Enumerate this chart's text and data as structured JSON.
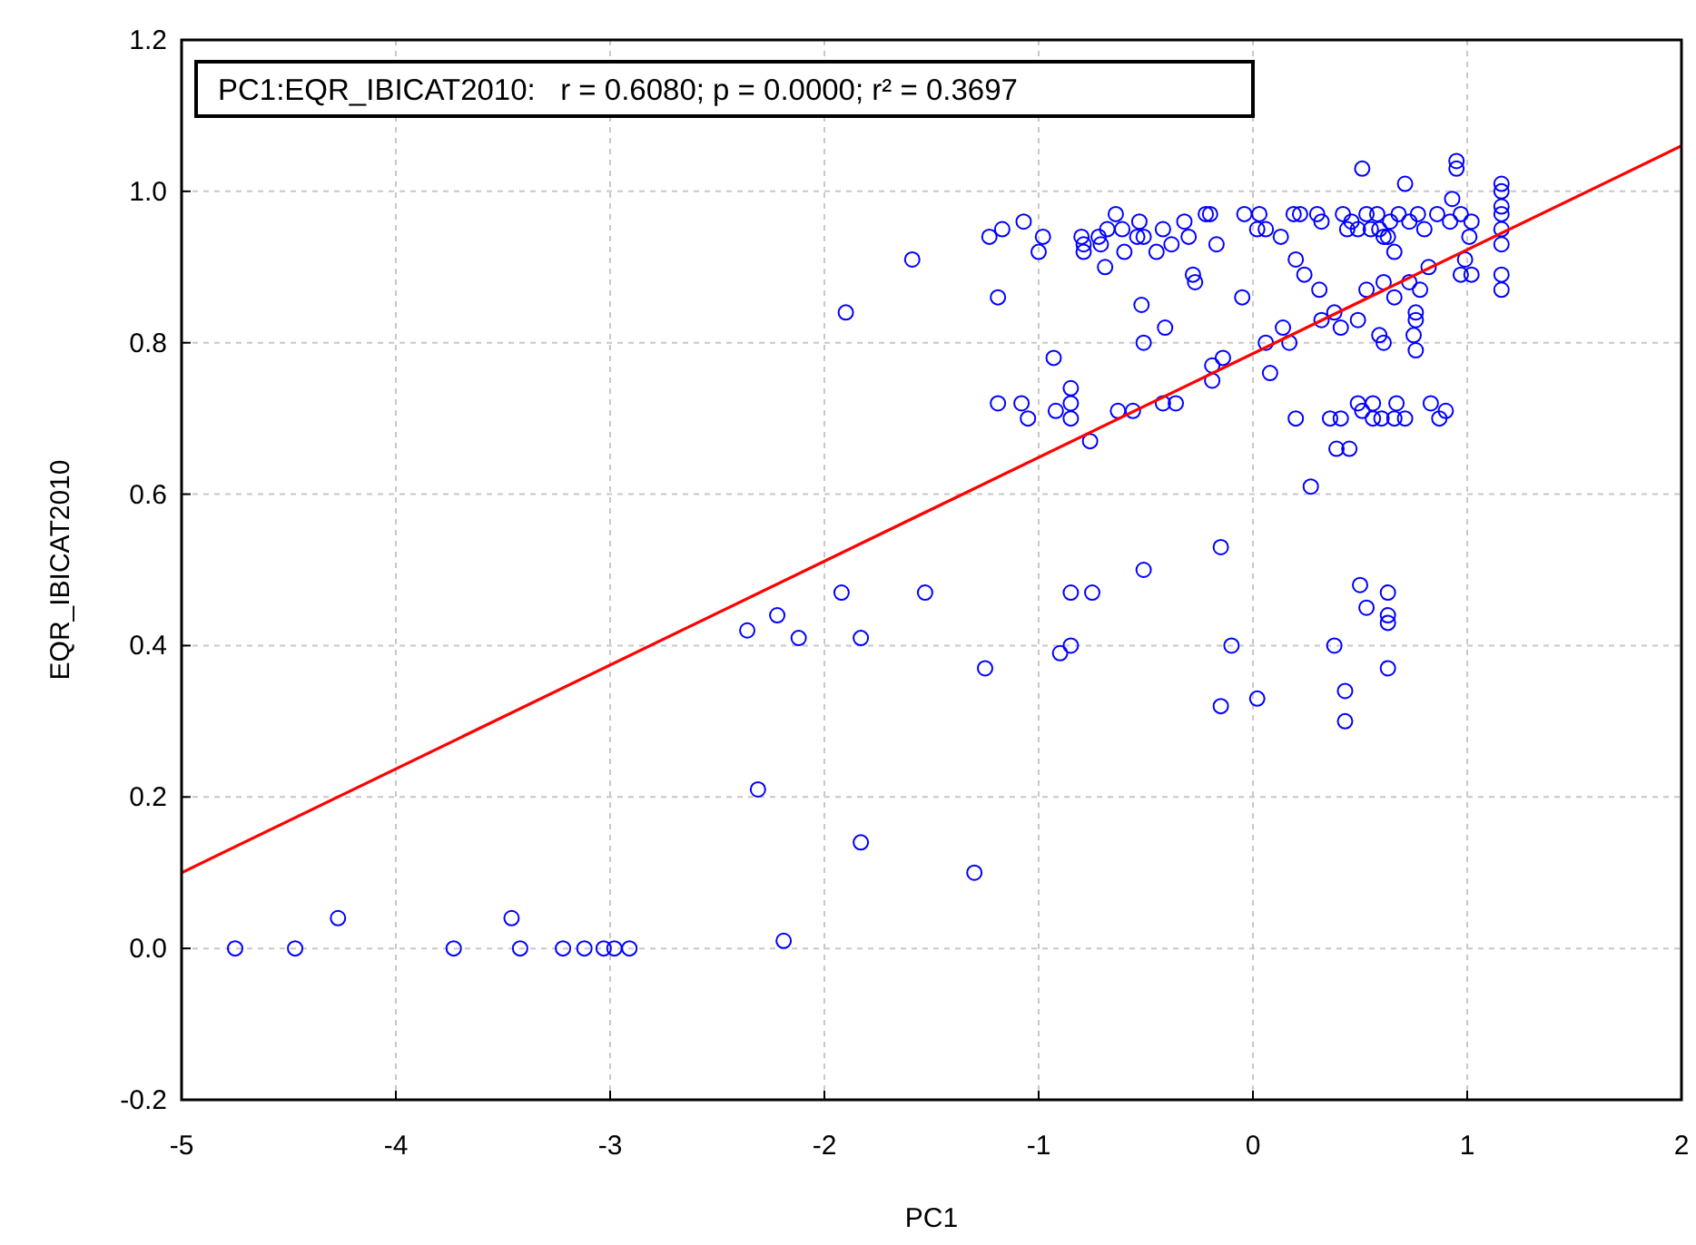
{
  "chart_data": {
    "type": "scatter",
    "xlabel": "PC1",
    "ylabel": "EQR_IBICAT2010",
    "annotations": [
      "PC1:EQR_IBICAT2010:   r = 0.6080; p = 0.0000; r² = 0.3697"
    ],
    "xlim": [
      -5,
      2
    ],
    "xticks": [
      -5,
      -4,
      -3,
      -2,
      -1,
      0,
      1,
      2
    ],
    "ylim": [
      -0.2,
      1.2
    ],
    "yticks": [
      -0.2,
      {
        "value": 0,
        "label": "0.0"
      },
      0.2,
      0.4,
      0.6,
      0.8,
      {
        "value": 1,
        "label": "1.0"
      },
      1.2
    ],
    "grid": true,
    "series": [
      {
        "color": "#0000ff",
        "marker": "circle",
        "x": [
          -4.75,
          -4.47,
          -4.27,
          -3.73,
          -3.46,
          -3.42,
          -3.22,
          -3.12,
          -3.03,
          -2.98,
          -2.91,
          -2.19,
          -2.31,
          -1.83,
          -1.3,
          -2.36,
          -2.22,
          -2.12,
          -1.92,
          -1.83,
          -1.53,
          -1.25,
          -0.9,
          -0.85,
          -0.85,
          -0.75,
          -0.51,
          -0.15,
          -0.15,
          -0.1,
          0.02,
          0.38,
          0.43,
          0.43,
          0.5,
          0.53,
          0.63,
          0.63,
          0.63,
          0.63,
          -1.9,
          -1.59,
          -1.19,
          -1.19,
          -1.08,
          -1.05,
          -0.93,
          -0.92,
          -0.85,
          -0.85,
          -0.85,
          -0.76,
          -0.63,
          -0.56,
          -0.51,
          -0.41,
          -0.42,
          -0.36,
          -0.52,
          -0.05,
          -0.19,
          -0.19,
          -0.14,
          0.08,
          0.06,
          0.14,
          0.17,
          0.2,
          0.27,
          0.32,
          0.36,
          0.39,
          0.41,
          0.41,
          0.45,
          0.49,
          0.51,
          0.56,
          0.56,
          0.6,
          0.66,
          0.71,
          0.67,
          0.61,
          0.59,
          0.75,
          0.76,
          0.83,
          0.87,
          0.9,
          0.49,
          0.53,
          0.61,
          0.66,
          0.73,
          0.78,
          0.76,
          0.76,
          0.82,
          0.97,
          -1.23,
          -1.17,
          -1.07,
          -1.0,
          -0.98,
          -0.8,
          -0.79,
          -0.79,
          -0.72,
          -0.71,
          -0.69,
          -0.68,
          -0.64,
          -0.61,
          -0.6,
          -0.54,
          -0.53,
          -0.51,
          -0.45,
          -0.42,
          -0.38,
          -0.32,
          -0.3,
          -0.28,
          -0.27,
          -0.22,
          -0.2,
          -0.17,
          -0.04,
          0.03,
          0.02,
          0.06,
          0.13,
          0.19,
          0.22,
          0.3,
          0.32,
          0.42,
          0.44,
          0.46,
          0.49,
          0.51,
          0.53,
          0.55,
          0.58,
          0.59,
          0.61,
          0.63,
          0.64,
          0.66,
          0.68,
          0.71,
          0.73,
          0.77,
          0.8,
          0.86,
          0.92,
          0.93,
          0.95,
          0.95,
          0.97,
          1.01,
          1.02,
          1.02,
          0.99,
          1.16,
          1.16,
          1.16,
          1.16,
          1.16,
          1.16,
          1.16,
          1.16,
          0.2,
          0.24,
          0.38,
          0.31
        ],
        "values": [
          0,
          0,
          0.04,
          0,
          0.04,
          0,
          0,
          0,
          0,
          0,
          0,
          0.01,
          0.21,
          0.14,
          0.1,
          0.42,
          0.44,
          0.41,
          0.47,
          0.41,
          0.47,
          0.37,
          0.39,
          0.4,
          0.47,
          0.47,
          0.5,
          0.53,
          0.32,
          0.4,
          0.33,
          0.4,
          0.34,
          0.3,
          0.48,
          0.45,
          0.47,
          0.44,
          0.43,
          0.37,
          0.84,
          0.91,
          0.86,
          0.72,
          0.72,
          0.7,
          0.78,
          0.71,
          0.74,
          0.72,
          0.7,
          0.67,
          0.71,
          0.71,
          0.8,
          0.82,
          0.72,
          0.72,
          0.85,
          0.86,
          0.75,
          0.77,
          0.78,
          0.76,
          0.8,
          0.82,
          0.8,
          0.7,
          0.61,
          0.83,
          0.7,
          0.66,
          0.7,
          0.82,
          0.66,
          0.72,
          0.71,
          0.72,
          0.7,
          0.7,
          0.7,
          0.7,
          0.72,
          0.8,
          0.81,
          0.81,
          0.79,
          0.72,
          0.7,
          0.71,
          0.83,
          0.87,
          0.88,
          0.86,
          0.88,
          0.87,
          0.83,
          0.84,
          0.9,
          0.89,
          0.94,
          0.95,
          0.96,
          0.92,
          0.94,
          0.94,
          0.93,
          0.92,
          0.94,
          0.93,
          0.9,
          0.95,
          0.97,
          0.95,
          0.92,
          0.94,
          0.96,
          0.94,
          0.92,
          0.95,
          0.93,
          0.96,
          0.94,
          0.89,
          0.88,
          0.97,
          0.97,
          0.93,
          0.97,
          0.97,
          0.95,
          0.95,
          0.94,
          0.97,
          0.97,
          0.97,
          0.96,
          0.97,
          0.95,
          0.96,
          0.95,
          1.03,
          0.97,
          0.95,
          0.97,
          0.95,
          0.94,
          0.94,
          0.96,
          0.92,
          0.97,
          1.01,
          0.96,
          0.97,
          0.95,
          0.97,
          0.96,
          0.99,
          1.04,
          1.03,
          0.97,
          0.94,
          0.96,
          0.89,
          0.91,
          1.01,
          1.0,
          0.98,
          0.97,
          0.95,
          0.93,
          0.89,
          0.87,
          0.91,
          0.89,
          0.84,
          0.87
        ]
      },
      {
        "type": "line",
        "color": "#ff0000",
        "marker": "none",
        "x": [
          -5,
          2
        ],
        "values": [
          0.1,
          1.06
        ]
      }
    ]
  }
}
